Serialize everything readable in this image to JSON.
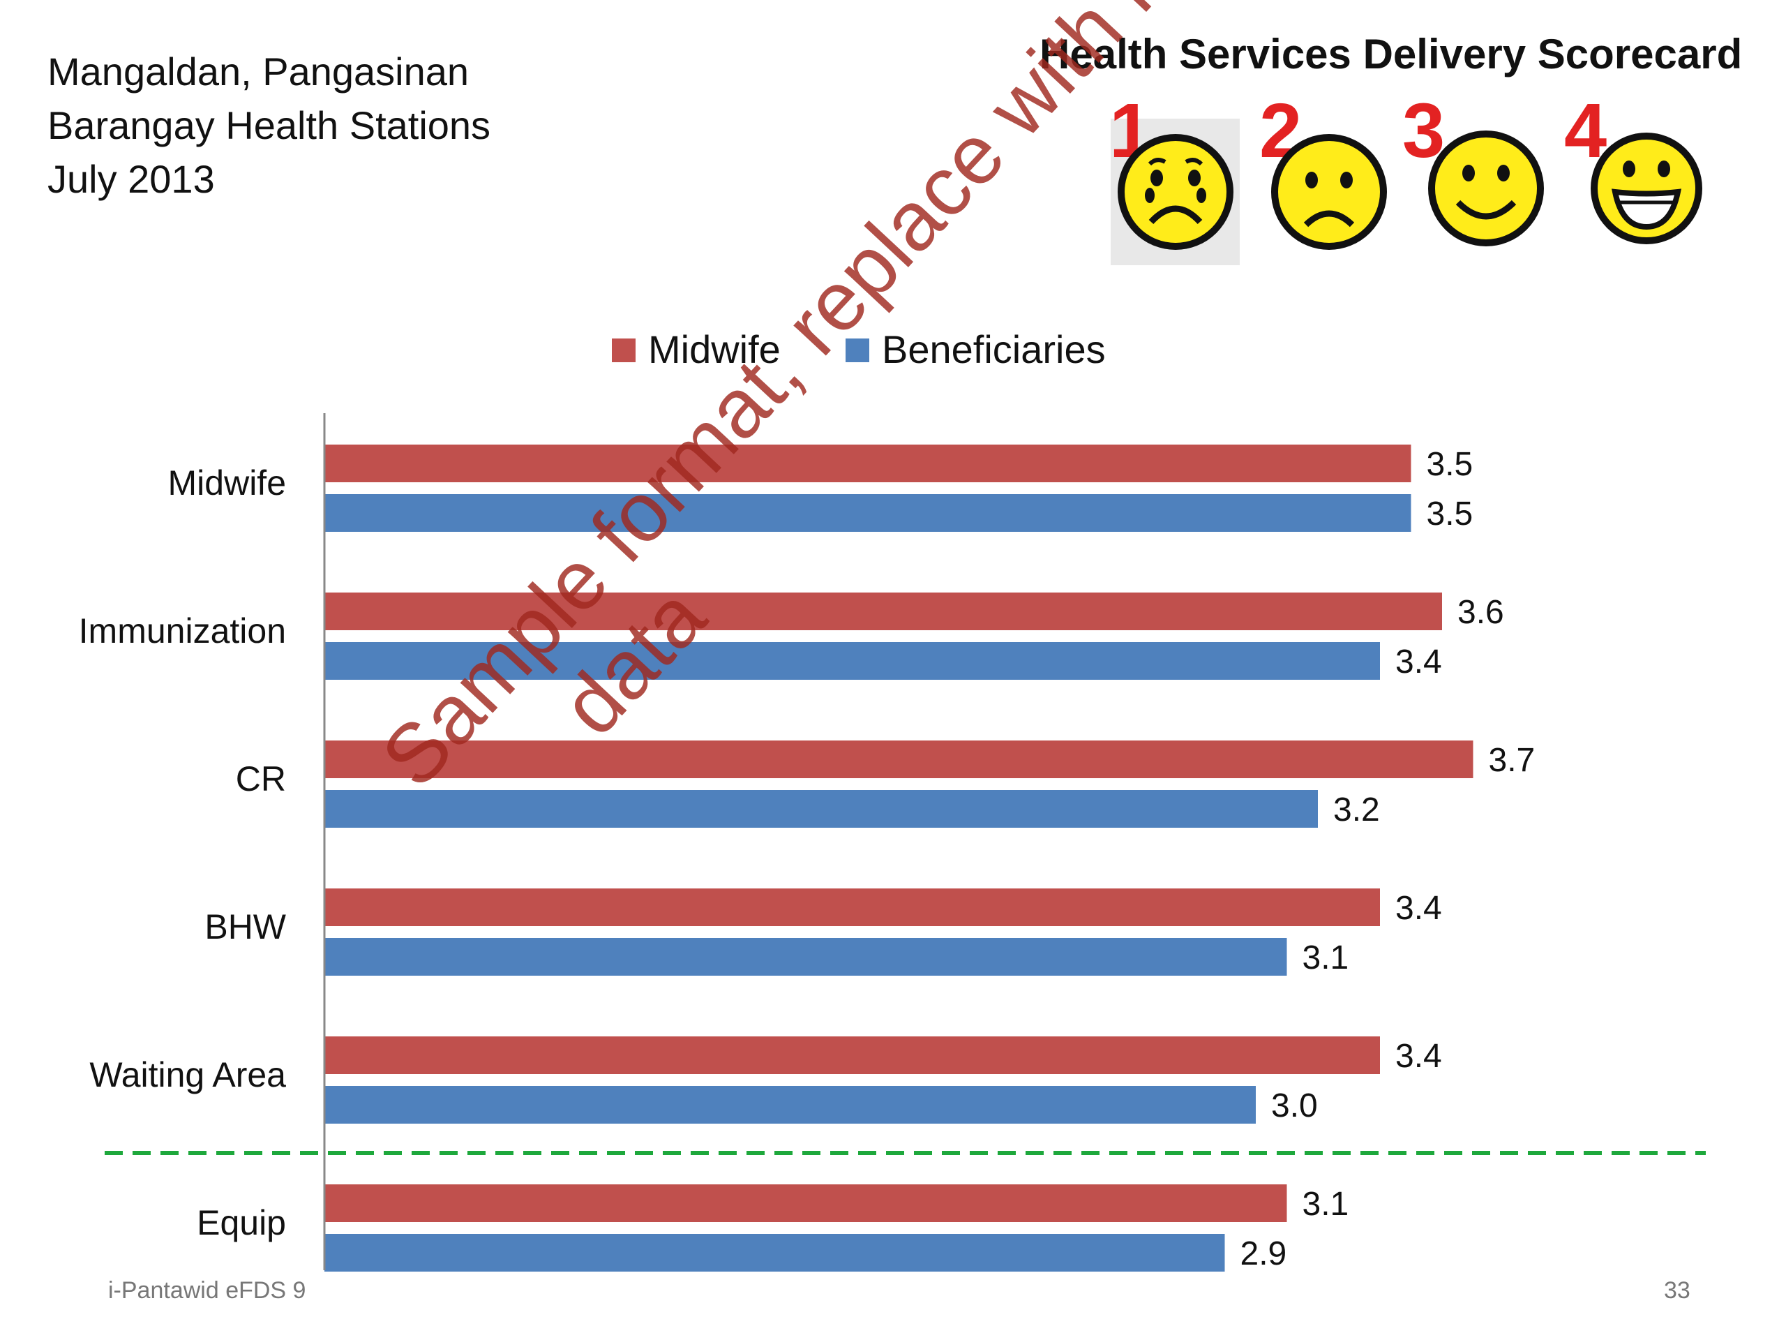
{
  "header": {
    "line1": "Mangaldan, Pangasinan",
    "line2": "Barangay Health Stations",
    "line3": "July 2013"
  },
  "scorecard": {
    "title": "Health Services Delivery Scorecard",
    "levels": [
      {
        "number": "1",
        "icon": "crying-face-icon"
      },
      {
        "number": "2",
        "icon": "sad-face-icon"
      },
      {
        "number": "3",
        "icon": "smiling-face-icon"
      },
      {
        "number": "4",
        "icon": "grinning-face-icon"
      }
    ],
    "number_color": "#e32222",
    "face_color": "#ffec1a"
  },
  "watermark": {
    "line1": "Sample format, replace with local",
    "line2": "data"
  },
  "chart_data": {
    "type": "bar",
    "orientation": "horizontal",
    "categories": [
      "Midwife",
      "Immunization",
      "CR",
      "BHW",
      "Waiting Area",
      "Equip"
    ],
    "series": [
      {
        "name": "Midwife",
        "color": "#c0504d",
        "values": [
          3.5,
          3.6,
          3.7,
          3.4,
          3.4,
          3.1
        ]
      },
      {
        "name": "Beneficiaries",
        "color": "#4f81bd",
        "values": [
          3.5,
          3.4,
          3.2,
          3.1,
          3.0,
          2.9
        ]
      }
    ],
    "xlim": [
      0,
      3.7
    ],
    "legend_position": "top",
    "separator": {
      "after_category": "Waiting Area",
      "style": "dashed",
      "color": "#1ea83c"
    }
  },
  "footer": {
    "left": "i-Pantawid eFDS 9",
    "right": "33"
  }
}
